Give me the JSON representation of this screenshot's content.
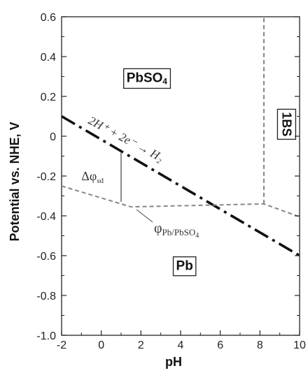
{
  "chart_data": {
    "type": "line",
    "xlabel": "pH",
    "ylabel": "Potential vs. NHE, V",
    "xlim": [
      -2,
      10
    ],
    "ylim": [
      -1.0,
      0.6
    ],
    "x_ticks": [
      "-2",
      "0",
      "2",
      "4",
      "6",
      "8",
      "10"
    ],
    "y_ticks": [
      "0.6",
      "0.4",
      "0.2",
      "0",
      "-0.2",
      "-0.4",
      "-0.6",
      "-0.8",
      "-1.0"
    ],
    "grid": false,
    "series": [
      {
        "name": "2H⁺ + 2e⁻ → H₂",
        "style": "dash-dot",
        "color": "#111111",
        "x": [
          -2,
          10
        ],
        "y": [
          0.1,
          -0.6
        ]
      },
      {
        "name": "φPb/PbSO4",
        "style": "dashed",
        "color": "#888888",
        "x": [
          -2,
          1.5,
          8.2,
          10
        ],
        "y": [
          -0.25,
          -0.355,
          -0.34,
          -0.405
        ]
      },
      {
        "name": "1BS boundary",
        "style": "dashed",
        "color": "#888888",
        "x": [
          8.2,
          8.2
        ],
        "y": [
          -0.34,
          0.6
        ]
      }
    ],
    "annotations": {
      "delta_x": 1.0,
      "delta_y_top": -0.08,
      "delta_y_bottom": -0.33
    },
    "regions": {
      "pbso4": {
        "text": "PbSO",
        "sub": "4",
        "x": 2.3,
        "y": 0.29
      },
      "pb": {
        "text": "Pb",
        "x": 4.2,
        "y": -0.655
      },
      "ibs": {
        "text": "1BS",
        "x": 9.3,
        "y": 0.06
      }
    },
    "labels": {
      "h2_reaction": "2H⁺ + 2e⁻ → H₂",
      "delta_phi": "Δφ",
      "delta_phi_sub": "sd",
      "phi_pb": "φ",
      "phi_pb_sub": "Pb/PbSO",
      "phi_pb_sub2": "4"
    }
  }
}
